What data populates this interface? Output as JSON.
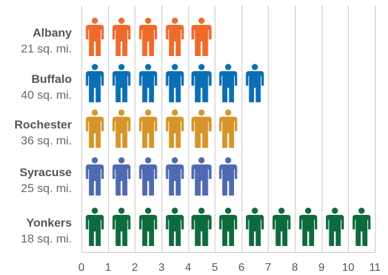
{
  "chart_data": {
    "type": "bar",
    "categories": [
      "Albany",
      "Buffalo",
      "Rochester",
      "Syracuse",
      "Yonkers"
    ],
    "category_subtitles": [
      "21 sq. mi.",
      "40 sq. mi.",
      "36 sq. mi.",
      "25 sq. mi.",
      "18 sq. mi."
    ],
    "values": [
      5,
      7,
      6,
      6,
      11
    ],
    "colors": [
      "#f06a2c",
      "#0a6fb4",
      "#d6952a",
      "#4f6ab0",
      "#0e6b3e"
    ],
    "icon": "person-icon",
    "xlim": [
      0,
      11
    ],
    "xticks": [
      0,
      1,
      2,
      3,
      4,
      5,
      6,
      7,
      8,
      9,
      10,
      11
    ],
    "grid": true,
    "title": "",
    "xlabel": "",
    "ylabel": ""
  }
}
